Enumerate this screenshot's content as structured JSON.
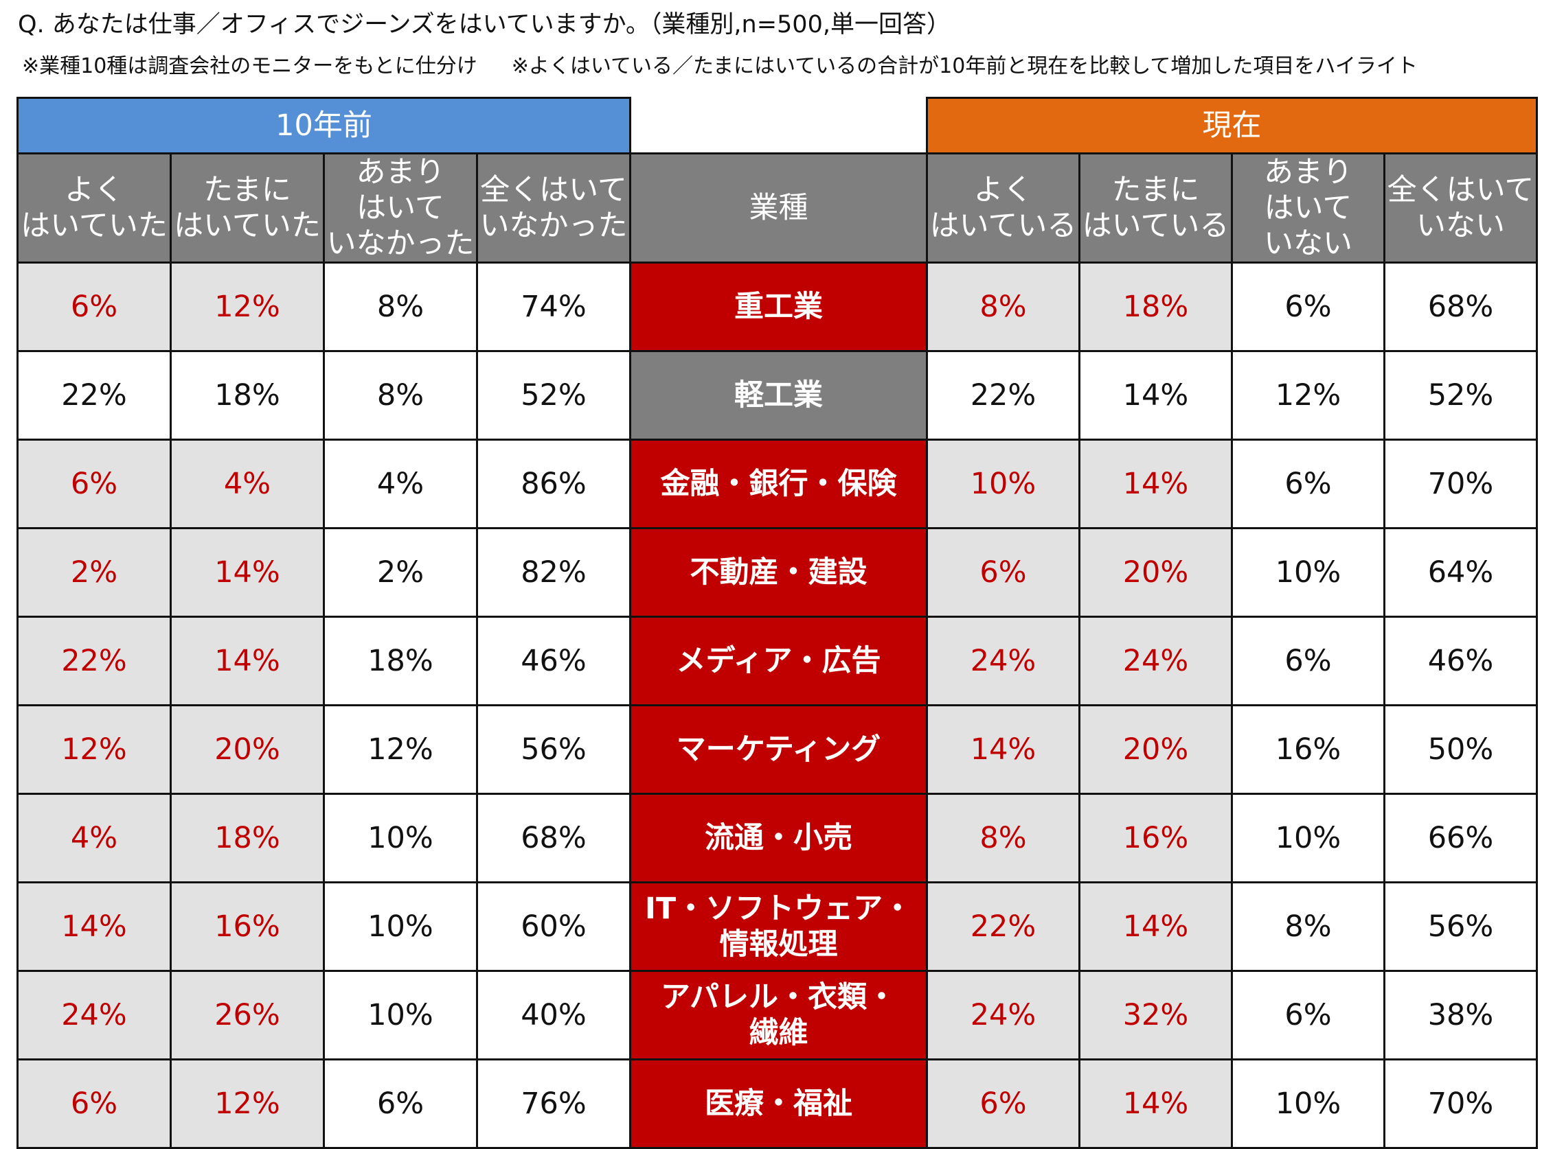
{
  "title": "Q. あなたは仕事／オフィスでジーンズをはいていますか。（業種別,n=500,単一回答）",
  "notes": [
    "※業種10種は調査会社のモニターをもとに仕分け",
    "※よくはいている／たまにはいているの合計が10年前と現在を比較して増加した項目をハイライト"
  ],
  "colors": {
    "past_header": "#5590d6",
    "now_header": "#e2690f",
    "highlight_text": "#c00000",
    "highlight_cell": "#e2e2e2",
    "increase_industry": "#c00000",
    "no_increase_industry": "#7f7f7f"
  },
  "chart_data": {
    "type": "table",
    "groups": {
      "past": "10年前",
      "now": "現在"
    },
    "industry_header": "業種",
    "past_columns": [
      "よく\nはいていた",
      "たまに\nはいていた",
      "あまり\nはいて\nいなかった",
      "全くはいて\nいなかった"
    ],
    "now_columns": [
      "よく\nはいている",
      "たまに\nはいている",
      "あまり\nはいて\nいない",
      "全くはいて\nいない"
    ],
    "rows": [
      {
        "industry": "重工業",
        "increased": true,
        "past": [
          "6%",
          "12%",
          "8%",
          "74%"
        ],
        "now": [
          "8%",
          "18%",
          "6%",
          "68%"
        ]
      },
      {
        "industry": "軽工業",
        "increased": false,
        "past": [
          "22%",
          "18%",
          "8%",
          "52%"
        ],
        "now": [
          "22%",
          "14%",
          "12%",
          "52%"
        ]
      },
      {
        "industry": "金融・銀行・保険",
        "increased": true,
        "past": [
          "6%",
          "4%",
          "4%",
          "86%"
        ],
        "now": [
          "10%",
          "14%",
          "6%",
          "70%"
        ]
      },
      {
        "industry": "不動産・建設",
        "increased": true,
        "past": [
          "2%",
          "14%",
          "2%",
          "82%"
        ],
        "now": [
          "6%",
          "20%",
          "10%",
          "64%"
        ]
      },
      {
        "industry": "メディア・広告",
        "increased": true,
        "past": [
          "22%",
          "14%",
          "18%",
          "46%"
        ],
        "now": [
          "24%",
          "24%",
          "6%",
          "46%"
        ]
      },
      {
        "industry": "マーケティング",
        "increased": true,
        "past": [
          "12%",
          "20%",
          "12%",
          "56%"
        ],
        "now": [
          "14%",
          "20%",
          "16%",
          "50%"
        ]
      },
      {
        "industry": "流通・小売",
        "increased": true,
        "past": [
          "4%",
          "18%",
          "10%",
          "68%"
        ],
        "now": [
          "8%",
          "16%",
          "10%",
          "66%"
        ]
      },
      {
        "industry": "IT・ソフトウェア・\n情報処理",
        "increased": true,
        "past": [
          "14%",
          "16%",
          "10%",
          "60%"
        ],
        "now": [
          "22%",
          "14%",
          "8%",
          "56%"
        ]
      },
      {
        "industry": "アパレル・衣類・\n繊維",
        "increased": true,
        "past": [
          "24%",
          "26%",
          "10%",
          "40%"
        ],
        "now": [
          "24%",
          "32%",
          "6%",
          "38%"
        ]
      },
      {
        "industry": "医療・福祉",
        "increased": true,
        "past": [
          "6%",
          "12%",
          "6%",
          "76%"
        ],
        "now": [
          "6%",
          "14%",
          "10%",
          "70%"
        ]
      }
    ]
  }
}
